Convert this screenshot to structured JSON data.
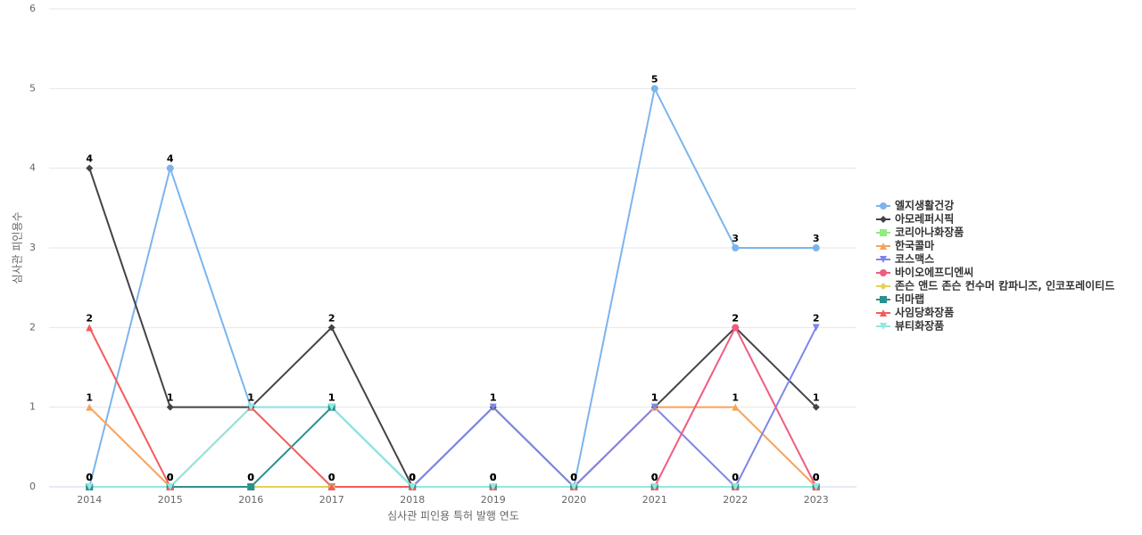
{
  "chart_data": {
    "type": "line",
    "x_label": "심사관 피인용 특허 발행 연도",
    "y_label": "심사관 피인용수",
    "categories": [
      "2014",
      "2015",
      "2016",
      "2017",
      "2018",
      "2019",
      "2020",
      "2021",
      "2022",
      "2023"
    ],
    "ylim": [
      0,
      6
    ],
    "yticks": [
      0,
      1,
      2,
      3,
      4,
      5,
      6
    ],
    "grid": true,
    "series": [
      {
        "name": "엘지생활건강",
        "color": "#7cb5ec",
        "marker": "circle",
        "values": [
          0,
          4,
          1,
          1,
          0,
          0,
          0,
          5,
          3,
          3
        ]
      },
      {
        "name": "아모레퍼시픽",
        "color": "#434348",
        "marker": "diamond",
        "values": [
          4,
          1,
          1,
          2,
          0,
          1,
          0,
          1,
          2,
          1
        ]
      },
      {
        "name": "코리아나화장품",
        "color": "#90ed7d",
        "marker": "square",
        "values": [
          0,
          0,
          0,
          0,
          0,
          0,
          0,
          0,
          0,
          0
        ]
      },
      {
        "name": "한국콜마",
        "color": "#f7a35c",
        "marker": "triangle",
        "values": [
          1,
          0,
          0,
          0,
          0,
          0,
          0,
          1,
          1,
          0
        ]
      },
      {
        "name": "코스맥스",
        "color": "#8085e9",
        "marker": "triangle-down",
        "values": [
          0,
          0,
          0,
          0,
          0,
          1,
          0,
          1,
          0,
          2
        ]
      },
      {
        "name": "바이오에프디엔씨",
        "color": "#f15c80",
        "marker": "circle",
        "values": [
          0,
          0,
          0,
          0,
          0,
          0,
          0,
          0,
          2,
          0
        ]
      },
      {
        "name": "존슨 앤드 존슨 컨수머 캄파니즈, 인코포레이티드",
        "color": "#e4d354",
        "marker": "diamond",
        "values": [
          0,
          0,
          0,
          0,
          0,
          0,
          0,
          0,
          0,
          0
        ]
      },
      {
        "name": "더마랩",
        "color": "#2b908f",
        "marker": "square",
        "values": [
          0,
          0,
          0,
          1,
          0,
          0,
          0,
          0,
          0,
          0
        ]
      },
      {
        "name": "사임당화장품",
        "color": "#f45b5b",
        "marker": "triangle",
        "values": [
          2,
          0,
          1,
          0,
          0,
          0,
          0,
          0,
          0,
          0
        ]
      },
      {
        "name": "뷰티화장품",
        "color": "#91e8e1",
        "marker": "triangle-down",
        "values": [
          0,
          0,
          1,
          1,
          0,
          0,
          0,
          0,
          0,
          0
        ]
      }
    ],
    "legend": "right"
  }
}
